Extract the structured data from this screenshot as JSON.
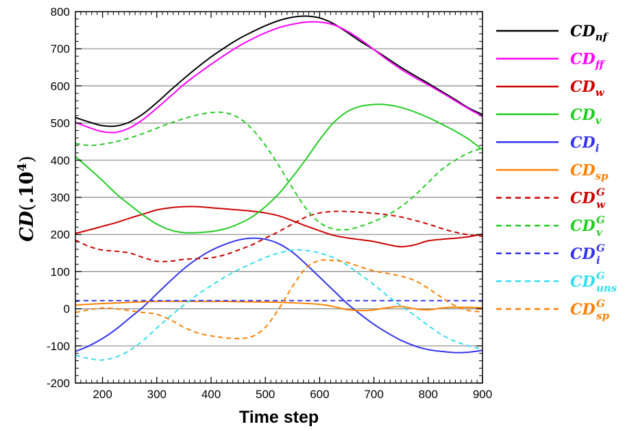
{
  "chart_data": {
    "type": "line",
    "title": "",
    "xlabel": "Time step",
    "ylabel": {
      "main": "CD",
      "paren_open": "(",
      "dot": ".",
      "base": "10",
      "exp": "4",
      "paren_close": ")"
    },
    "xlim": [
      150,
      900
    ],
    "ylim": [
      -200,
      800
    ],
    "xticks": [
      "200",
      "300",
      "400",
      "500",
      "600",
      "700",
      "800",
      "900"
    ],
    "yticks": [
      "-200",
      "-100",
      "0",
      "100",
      "200",
      "300",
      "400",
      "500",
      "600",
      "700",
      "800"
    ],
    "grid": "horizontal",
    "legend_position": "right",
    "series": [
      {
        "name": {
          "base": "CD",
          "sub": "nf",
          "sup": ""
        },
        "color": "#000000",
        "dash": "solid",
        "x": [
          150,
          175,
          200,
          225,
          250,
          275,
          300,
          325,
          350,
          375,
          400,
          425,
          450,
          475,
          500,
          525,
          550,
          575,
          600,
          625,
          650,
          675,
          700,
          725,
          750,
          775,
          800,
          825,
          850,
          875,
          900
        ],
        "y": [
          515,
          503,
          493,
          492,
          503,
          525,
          555,
          588,
          620,
          650,
          678,
          703,
          726,
          745,
          762,
          776,
          785,
          788,
          783,
          768,
          745,
          720,
          698,
          674,
          650,
          628,
          607,
          585,
          563,
          540,
          523
        ]
      },
      {
        "name": {
          "base": "CD",
          "sub": "ff",
          "sup": ""
        },
        "color": "#ff00ff",
        "dash": "solid",
        "x": [
          150,
          175,
          200,
          225,
          250,
          275,
          300,
          325,
          350,
          375,
          400,
          425,
          450,
          475,
          500,
          525,
          550,
          575,
          600,
          625,
          650,
          675,
          700,
          725,
          750,
          775,
          800,
          825,
          850,
          875,
          900
        ],
        "y": [
          502,
          488,
          477,
          475,
          487,
          510,
          540,
          572,
          604,
          632,
          658,
          683,
          706,
          726,
          743,
          757,
          766,
          772,
          772,
          765,
          748,
          725,
          698,
          670,
          645,
          623,
          603,
          582,
          560,
          538,
          518
        ]
      },
      {
        "name": {
          "base": "CD",
          "sub": "w",
          "sup": ""
        },
        "color": "#cc0000",
        "dash": "solid",
        "x": [
          150,
          175,
          200,
          225,
          250,
          275,
          300,
          325,
          350,
          375,
          400,
          425,
          450,
          475,
          500,
          525,
          550,
          575,
          600,
          625,
          650,
          675,
          700,
          725,
          750,
          775,
          800,
          825,
          850,
          875,
          900
        ],
        "y": [
          203,
          212,
          222,
          232,
          244,
          255,
          266,
          272,
          275,
          275,
          272,
          269,
          266,
          263,
          258,
          250,
          237,
          223,
          210,
          198,
          191,
          186,
          181,
          173,
          167,
          172,
          183,
          187,
          190,
          194,
          201
        ]
      },
      {
        "name": {
          "base": "CD",
          "sub": "v",
          "sup": ""
        },
        "color": "#22cc22",
        "dash": "solid",
        "x": [
          150,
          175,
          200,
          225,
          250,
          275,
          300,
          325,
          350,
          375,
          400,
          425,
          450,
          475,
          500,
          525,
          550,
          575,
          600,
          625,
          650,
          675,
          700,
          725,
          750,
          775,
          800,
          825,
          850,
          875,
          900
        ],
        "y": [
          410,
          378,
          345,
          310,
          280,
          252,
          228,
          212,
          205,
          205,
          208,
          215,
          228,
          247,
          275,
          310,
          355,
          403,
          455,
          500,
          530,
          545,
          550,
          549,
          542,
          530,
          515,
          497,
          478,
          456,
          428
        ]
      },
      {
        "name": {
          "base": "CD",
          "sub": "i",
          "sup": ""
        },
        "color": "#3333ee",
        "dash": "solid",
        "x": [
          150,
          175,
          200,
          225,
          250,
          275,
          300,
          325,
          350,
          375,
          400,
          425,
          450,
          475,
          500,
          525,
          550,
          575,
          600,
          625,
          650,
          675,
          700,
          725,
          750,
          775,
          800,
          825,
          850,
          875,
          900
        ],
        "y": [
          -115,
          -100,
          -80,
          -55,
          -25,
          5,
          40,
          75,
          108,
          135,
          157,
          173,
          185,
          190,
          187,
          175,
          152,
          120,
          85,
          50,
          15,
          -15,
          -42,
          -65,
          -85,
          -100,
          -110,
          -115,
          -118,
          -117,
          -112
        ]
      },
      {
        "name": {
          "base": "CD",
          "sub": "sp",
          "sup": ""
        },
        "color": "#ff8000",
        "dash": "solid",
        "x": [
          150,
          200,
          250,
          300,
          350,
          400,
          450,
          500,
          550,
          600,
          625,
          650,
          675,
          700,
          725,
          750,
          775,
          800,
          825,
          850,
          900
        ],
        "y": [
          10,
          14,
          17,
          20,
          20,
          20,
          19,
          18,
          16,
          12,
          6,
          -2,
          -5,
          -3,
          3,
          6,
          0,
          -3,
          2,
          4,
          3
        ]
      },
      {
        "name": {
          "base": "CD",
          "sub": "w",
          "sup": "G"
        },
        "color": "#cc0000",
        "dash": "dashed",
        "x": [
          150,
          175,
          200,
          225,
          250,
          275,
          300,
          325,
          350,
          375,
          400,
          425,
          450,
          475,
          500,
          525,
          550,
          575,
          600,
          625,
          650,
          675,
          700,
          725,
          750,
          775,
          800,
          825,
          850,
          875,
          900
        ],
        "y": [
          185,
          168,
          158,
          155,
          150,
          138,
          128,
          128,
          133,
          135,
          137,
          145,
          158,
          172,
          190,
          208,
          228,
          247,
          258,
          262,
          262,
          260,
          257,
          253,
          247,
          238,
          228,
          216,
          206,
          199,
          195
        ]
      },
      {
        "name": {
          "base": "CD",
          "sub": "v",
          "sup": "G"
        },
        "color": "#22cc22",
        "dash": "dashed",
        "x": [
          150,
          175,
          200,
          225,
          250,
          275,
          300,
          325,
          350,
          375,
          400,
          425,
          450,
          475,
          500,
          525,
          550,
          575,
          600,
          625,
          650,
          675,
          700,
          725,
          750,
          775,
          800,
          825,
          850,
          875,
          900
        ],
        "y": [
          445,
          440,
          443,
          450,
          460,
          472,
          486,
          500,
          512,
          522,
          528,
          528,
          515,
          485,
          440,
          385,
          325,
          270,
          232,
          215,
          213,
          222,
          235,
          252,
          275,
          305,
          340,
          375,
          400,
          420,
          433
        ]
      },
      {
        "name": {
          "base": "CD",
          "sub": "i",
          "sup": "G"
        },
        "color": "#3333ee",
        "dash": "dashed",
        "x": [
          150,
          900
        ],
        "y": [
          22,
          22
        ]
      },
      {
        "name": {
          "base": "CD",
          "sub": "uns",
          "sup": "G"
        },
        "color": "#33ddee",
        "dash": "dashed",
        "x": [
          150,
          175,
          200,
          225,
          250,
          275,
          300,
          325,
          350,
          375,
          400,
          425,
          450,
          475,
          500,
          525,
          550,
          575,
          600,
          625,
          650,
          675,
          700,
          725,
          750,
          775,
          800,
          825,
          850,
          875,
          900
        ],
        "y": [
          -125,
          -134,
          -138,
          -130,
          -112,
          -85,
          -52,
          -20,
          10,
          38,
          62,
          85,
          105,
          122,
          138,
          150,
          158,
          157,
          150,
          138,
          118,
          92,
          65,
          35,
          8,
          -18,
          -45,
          -70,
          -88,
          -100,
          -110
        ]
      },
      {
        "name": {
          "base": "CD",
          "sub": "sp",
          "sup": "G"
        },
        "color": "#ff8000",
        "dash": "dashed",
        "x": [
          150,
          175,
          200,
          225,
          250,
          275,
          300,
          325,
          350,
          375,
          400,
          425,
          450,
          475,
          500,
          525,
          550,
          575,
          600,
          625,
          650,
          675,
          700,
          725,
          750,
          775,
          800,
          825,
          850,
          875,
          900
        ],
        "y": [
          -10,
          -3,
          2,
          0,
          -5,
          -10,
          -15,
          -30,
          -50,
          -65,
          -73,
          -78,
          -80,
          -75,
          -50,
          0,
          60,
          110,
          130,
          130,
          125,
          113,
          102,
          95,
          88,
          76,
          55,
          30,
          8,
          -5,
          -8
        ]
      }
    ]
  }
}
